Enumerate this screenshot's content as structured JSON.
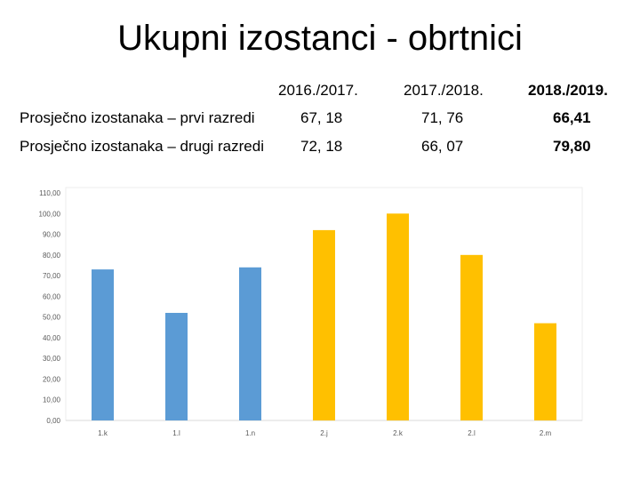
{
  "title": "Ukupni izostanci - obrtnici",
  "table": {
    "years": [
      "2016./2017.",
      "2017./2018.",
      "2018./2019."
    ],
    "rows": [
      {
        "label": "Prosječno izostanaka – prvi razredi",
        "values": [
          "67, 18",
          "71, 76",
          "66,41"
        ]
      },
      {
        "label": "Prosječno izostanaka – drugi razredi",
        "values": [
          "72, 18",
          "66, 07",
          "79,80"
        ]
      }
    ]
  },
  "chart_data": {
    "type": "bar",
    "categories": [
      "1.k",
      "1.l",
      "1.n",
      "2.j",
      "2.k",
      "2.l",
      "2.m"
    ],
    "values": [
      73.0,
      52.0,
      74.0,
      92.0,
      100.0,
      80.0,
      47.0
    ],
    "colors": [
      "#5b9bd5",
      "#5b9bd5",
      "#5b9bd5",
      "#ffc000",
      "#ffc000",
      "#ffc000",
      "#ffc000"
    ],
    "ylim": [
      0,
      110
    ],
    "yticks": [
      "0,00",
      "10,00",
      "20,00",
      "30,00",
      "40,00",
      "50,00",
      "60,00",
      "70,00",
      "80,00",
      "90,00",
      "100,00",
      "110,00"
    ],
    "grid": false,
    "title": "",
    "xlabel": "",
    "ylabel": ""
  }
}
